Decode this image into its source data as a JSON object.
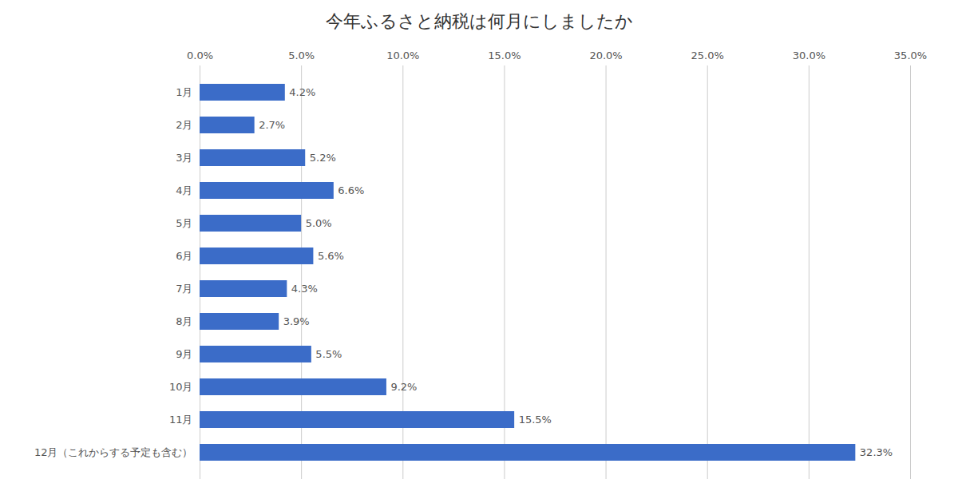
{
  "chart_data": {
    "type": "bar",
    "orientation": "horizontal",
    "title": "今年ふるさと納税は何月にしましたか",
    "categories": [
      "1月",
      "2月",
      "3月",
      "4月",
      "5月",
      "6月",
      "7月",
      "8月",
      "9月",
      "10月",
      "11月",
      "12月（これからする予定も含む）"
    ],
    "values": [
      4.2,
      2.7,
      5.2,
      6.6,
      5.0,
      5.6,
      4.3,
      3.9,
      5.5,
      9.2,
      15.5,
      32.3
    ],
    "value_labels": [
      "4.2%",
      "2.7%",
      "5.2%",
      "6.6%",
      "5.0%",
      "5.6%",
      "4.3%",
      "3.9%",
      "5.5%",
      "9.2%",
      "15.5%",
      "32.3%"
    ],
    "data_labels": true,
    "color": "#3B6CC8",
    "xlim": [
      0,
      35.0
    ],
    "xticks": [
      {
        "value": 0.0,
        "label": "0.0%"
      },
      {
        "value": 5.0,
        "label": "5.0%"
      },
      {
        "value": 10.0,
        "label": "10.0%"
      },
      {
        "value": 15.0,
        "label": "15.0%"
      },
      {
        "value": 20.0,
        "label": "20.0%"
      },
      {
        "value": 25.0,
        "label": "25.0%"
      },
      {
        "value": 30.0,
        "label": "30.0%"
      },
      {
        "value": 35.0,
        "label": "35.0%"
      }
    ],
    "grid": true
  }
}
